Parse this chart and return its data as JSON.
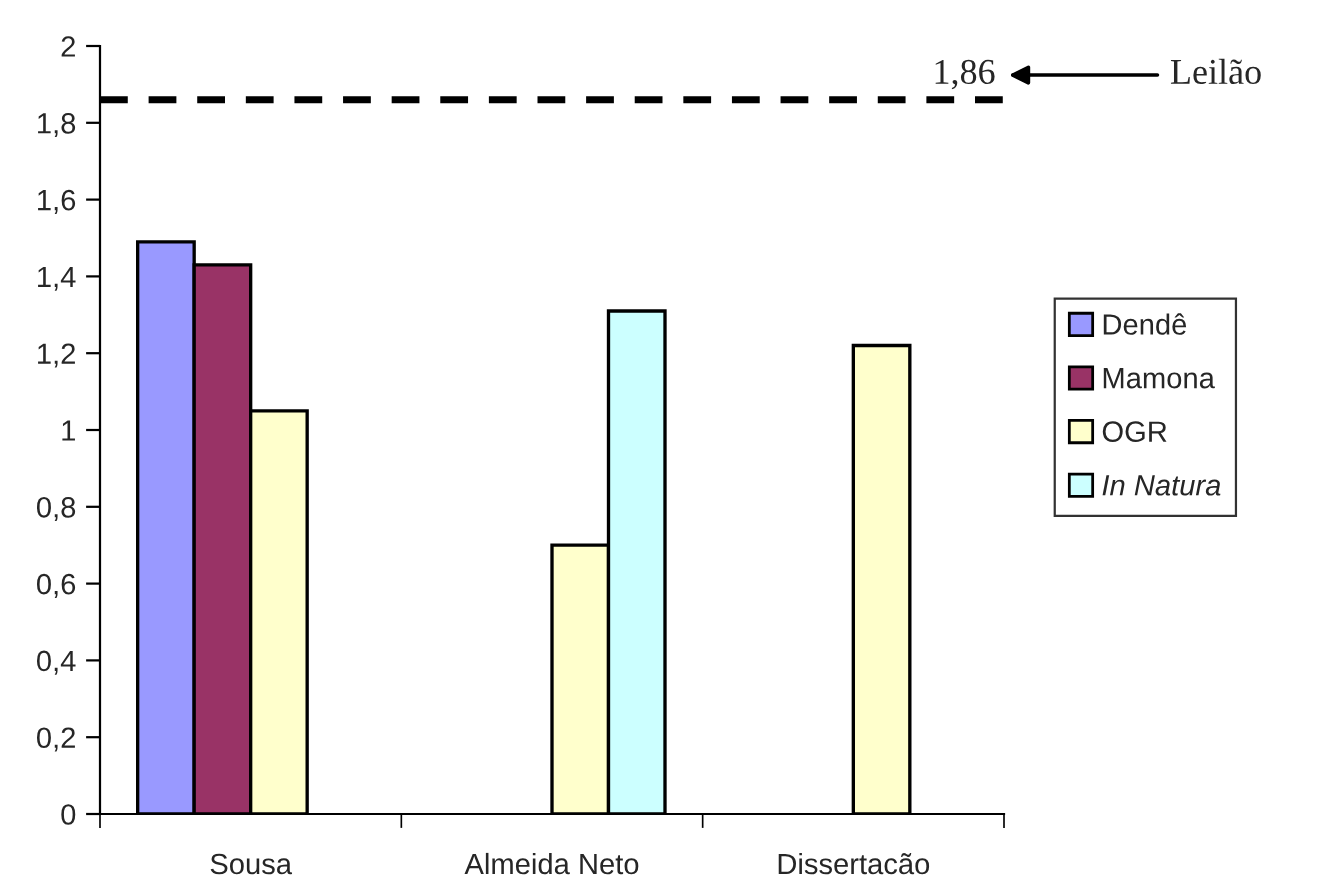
{
  "chart_data": {
    "type": "bar",
    "categories": [
      "Sousa",
      "Almeida Neto",
      "Dissertacão"
    ],
    "series": [
      {
        "name": "Dendê",
        "color": "#9999ff",
        "values": [
          1.49,
          null,
          null
        ]
      },
      {
        "name": "Mamona",
        "color": "#993366",
        "values": [
          1.43,
          null,
          null
        ]
      },
      {
        "name": "OGR",
        "color": "#ffffcc",
        "values": [
          1.05,
          0.7,
          1.22
        ]
      },
      {
        "name": "In Natura",
        "color": "#ccffff",
        "values": [
          null,
          1.31,
          null
        ]
      }
    ],
    "ylim": [
      0,
      2
    ],
    "yticks": [
      0,
      {
        "value": 0.2,
        "label": "0,2"
      },
      {
        "value": 0.4,
        "label": "0,4"
      },
      {
        "value": 0.6,
        "label": "0,6"
      },
      {
        "value": 0.8,
        "label": "0,8"
      },
      1,
      {
        "value": 1.2,
        "label": "1,2"
      },
      {
        "value": 1.4,
        "label": "1,4"
      },
      {
        "value": 1.6,
        "label": "1,6"
      },
      {
        "value": 1.8,
        "label": "1,8"
      },
      2
    ],
    "ref_lines": [
      {
        "axis": "y",
        "value": 1.86,
        "label": "1,86",
        "color": "#000000",
        "line_style": "dashed"
      }
    ],
    "annotations": [
      "Leilão"
    ],
    "grid": false,
    "legend": "right"
  }
}
